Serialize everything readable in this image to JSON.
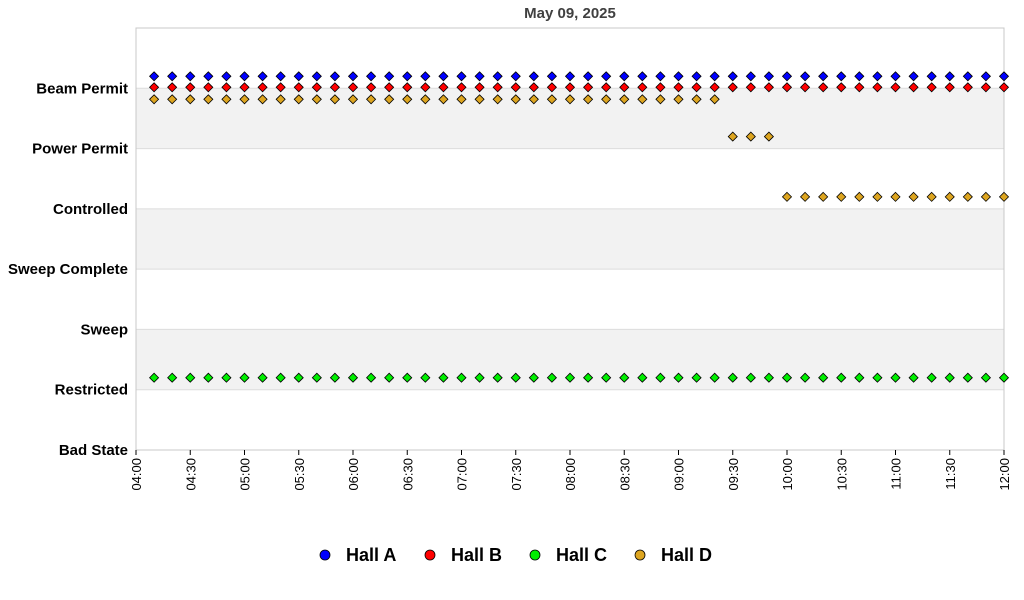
{
  "chart_data": {
    "type": "scatter",
    "title": "May 09, 2025",
    "xlabel": "",
    "ylabel": "",
    "y_categories": [
      "Bad State",
      "Restricted",
      "Sweep",
      "Sweep Complete",
      "Controlled",
      "Power Permit",
      "Beam Permit"
    ],
    "x_range": [
      "04:00",
      "12:00"
    ],
    "x_ticks": [
      "04:00",
      "04:30",
      "05:00",
      "05:30",
      "06:00",
      "06:30",
      "07:00",
      "07:30",
      "08:00",
      "08:30",
      "09:00",
      "09:30",
      "10:00",
      "10:30",
      "11:00",
      "11:30",
      "12:00"
    ],
    "grid": "alternating row bands",
    "legend_position": "bottom",
    "series": [
      {
        "name": "Hall A",
        "color": "#0000ff",
        "points": [
          {
            "from": "04:10",
            "to": "12:00",
            "every_min": 10,
            "state": "Beam Permit",
            "level": "upper"
          }
        ]
      },
      {
        "name": "Hall B",
        "color": "#ff0000",
        "points": [
          {
            "from": "04:10",
            "to": "12:00",
            "every_min": 10,
            "state": "Beam Permit",
            "level": "middle"
          }
        ]
      },
      {
        "name": "Hall C",
        "color": "#00ee00",
        "points": [
          {
            "from": "04:10",
            "to": "12:00",
            "every_min": 10,
            "state": "Restricted",
            "level": "upper"
          }
        ]
      },
      {
        "name": "Hall D",
        "color": "#dda520",
        "points": [
          {
            "from": "04:10",
            "to": "09:20",
            "every_min": 10,
            "state": "Beam Permit",
            "level": "lower"
          },
          {
            "from": "09:30",
            "to": "09:50",
            "every_min": 10,
            "state": "Power Permit",
            "level": "upper"
          },
          {
            "from": "10:00",
            "to": "12:00",
            "every_min": 10,
            "state": "Controlled",
            "level": "upper"
          }
        ]
      }
    ]
  }
}
